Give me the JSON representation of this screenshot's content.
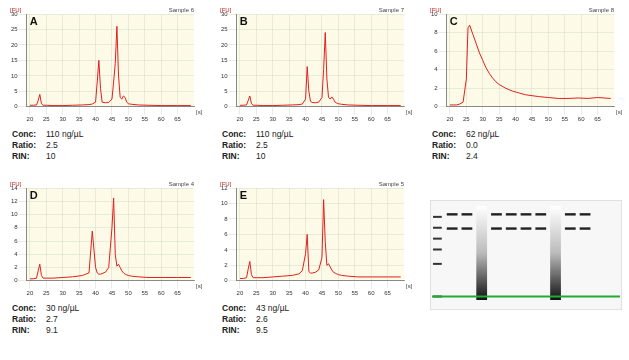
{
  "chart_data": [
    {
      "type": "line",
      "title": "A",
      "subtitle": "Sample 6",
      "ylabel": "[FU]",
      "xlabel": "[s]",
      "color": "#e0201c",
      "grid": true,
      "x": [
        20,
        21,
        22,
        22.5,
        23,
        23.5,
        24,
        25,
        27,
        30,
        33,
        36,
        38,
        39,
        40,
        40.5,
        41,
        41.5,
        42,
        43,
        44,
        45,
        45.5,
        46,
        46.5,
        47,
        47.5,
        48,
        48.5,
        49,
        49.5,
        50,
        51,
        53,
        56,
        60,
        65,
        69
      ],
      "values": [
        0.5,
        0.5,
        0.6,
        2,
        4,
        1,
        0.5,
        0.5,
        0.4,
        0.4,
        0.5,
        0.6,
        0.7,
        0.9,
        1.5,
        8,
        15,
        6,
        1.5,
        1.3,
        1.4,
        2.5,
        8,
        14,
        26,
        10,
        3,
        2.5,
        3.5,
        3,
        1.5,
        1,
        0.8,
        0.6,
        0.5,
        0.4,
        0.4,
        0.4
      ],
      "xlim": [
        19,
        70
      ],
      "xticks": [
        20,
        25,
        30,
        35,
        40,
        45,
        50,
        55,
        60,
        65
      ],
      "ylim": [
        0,
        30
      ],
      "yticks": [
        0,
        5,
        10,
        15,
        20,
        25,
        30
      ],
      "notes": [
        [
          "Conc:",
          "110 ng/µL"
        ],
        [
          "Ratio:",
          "2.5"
        ],
        [
          "RIN:",
          "10"
        ]
      ]
    },
    {
      "type": "line",
      "title": "B",
      "subtitle": "Sample 7",
      "ylabel": "[FU]",
      "xlabel": "[s]",
      "color": "#e0201c",
      "grid": true,
      "x": [
        20,
        21,
        22,
        22.5,
        23,
        23.5,
        24,
        25,
        27,
        30,
        33,
        36,
        38,
        39,
        40,
        40.5,
        41,
        41.5,
        42,
        43,
        44,
        45,
        45.5,
        46,
        46.5,
        47,
        47.5,
        48,
        48.5,
        49,
        49.5,
        50,
        51,
        53,
        56,
        60,
        65,
        69
      ],
      "values": [
        0.5,
        0.5,
        0.6,
        2,
        3.5,
        1,
        0.5,
        0.5,
        0.4,
        0.4,
        0.5,
        0.6,
        0.7,
        0.9,
        2.5,
        13,
        5,
        1.8,
        1.4,
        1.3,
        1.5,
        3,
        12,
        24,
        9,
        3,
        2.5,
        3.2,
        2.5,
        1.5,
        1.2,
        1,
        0.8,
        0.6,
        0.5,
        0.4,
        0.4,
        0.4
      ],
      "xlim": [
        19,
        70
      ],
      "xticks": [
        20,
        25,
        30,
        35,
        40,
        45,
        50,
        55,
        60,
        65
      ],
      "ylim": [
        0,
        30
      ],
      "yticks": [
        0,
        5,
        10,
        15,
        20,
        25,
        30
      ],
      "notes": [
        [
          "Conc:",
          "110 ng/µL"
        ],
        [
          "Ratio:",
          "2.5"
        ],
        [
          "RIN:",
          "10"
        ]
      ]
    },
    {
      "type": "line",
      "title": "C",
      "subtitle": "Sample 8",
      "ylabel": "[FU]",
      "xlabel": "[s]",
      "color": "#e0201c",
      "grid": true,
      "x": [
        20,
        21,
        22,
        23,
        24,
        25,
        25.5,
        26,
        27,
        28,
        29,
        30,
        31,
        32,
        33,
        34,
        35,
        37,
        39,
        41,
        43,
        45,
        47,
        50,
        53,
        56,
        59,
        62,
        65,
        69
      ],
      "values": [
        0.2,
        0.2,
        0.2,
        0.3,
        0.5,
        3,
        8.5,
        8.8,
        7.8,
        6.8,
        5.8,
        5,
        4.2,
        3.6,
        3.1,
        2.7,
        2.4,
        2,
        1.7,
        1.5,
        1.3,
        1.2,
        1.1,
        1,
        0.9,
        0.9,
        0.95,
        0.9,
        1,
        0.9
      ],
      "xlim": [
        19,
        70
      ],
      "xticks": [
        20,
        25,
        30,
        35,
        40,
        45,
        50,
        55,
        60,
        65
      ],
      "ylim": [
        0,
        10
      ],
      "yticks": [
        0,
        2,
        4,
        6,
        8,
        10
      ],
      "notes": [
        [
          "Conc:",
          "62 ng/µL"
        ],
        [
          "Ratio:",
          "0.0"
        ],
        [
          "RIN:",
          "2.4"
        ]
      ]
    },
    {
      "type": "line",
      "title": "D",
      "subtitle": "Sample 4",
      "ylabel": "[FU]",
      "xlabel": "[s]",
      "color": "#e0201c",
      "grid": true,
      "x": [
        20,
        21,
        22,
        22.5,
        23,
        23.5,
        24,
        25,
        27,
        30,
        33,
        36,
        38,
        39,
        40,
        40.5,
        41,
        41.5,
        42,
        43,
        44,
        45,
        45.5,
        46,
        46.5,
        47,
        47.5,
        48,
        48.5,
        49,
        49.5,
        50,
        51,
        53,
        56,
        60,
        65,
        69
      ],
      "values": [
        0.3,
        0.3,
        0.4,
        1.5,
        2.5,
        0.8,
        0.4,
        0.4,
        0.4,
        0.5,
        0.6,
        0.8,
        1.2,
        7.5,
        2,
        1.2,
        1,
        1,
        1.1,
        1.3,
        2,
        8,
        12.5,
        4,
        2.2,
        2.5,
        2,
        1.5,
        1.2,
        1,
        0.9,
        0.8,
        0.7,
        0.6,
        0.5,
        0.5,
        0.5,
        0.5
      ],
      "xlim": [
        19,
        70
      ],
      "xticks": [
        20,
        25,
        30,
        35,
        40,
        45,
        50,
        55,
        60,
        65
      ],
      "ylim": [
        0,
        14
      ],
      "yticks": [
        0,
        2,
        4,
        6,
        8,
        10,
        12,
        14
      ],
      "notes": [
        [
          "Conc:",
          "30 ng/µL"
        ],
        [
          "Ratio:",
          "2.7"
        ],
        [
          "RIN:",
          "9.1"
        ]
      ]
    },
    {
      "type": "line",
      "title": "E",
      "subtitle": "Sample 5",
      "ylabel": "[FU]",
      "xlabel": "[s]",
      "color": "#e0201c",
      "grid": true,
      "x": [
        20,
        21,
        22,
        22.5,
        23,
        23.5,
        24,
        25,
        27,
        30,
        33,
        36,
        38,
        39,
        40,
        40.5,
        41,
        41.5,
        42,
        43,
        44,
        45,
        45.5,
        46,
        46.5,
        47,
        47.5,
        48,
        48.5,
        49,
        49.5,
        50,
        51,
        53,
        56,
        60,
        65,
        69
      ],
      "values": [
        0.3,
        0.3,
        0.4,
        1.5,
        2.5,
        0.8,
        0.4,
        0.4,
        0.4,
        0.5,
        0.6,
        0.7,
        0.9,
        1.3,
        3.5,
        6,
        1.2,
        1,
        1,
        1.1,
        1.4,
        3,
        10.5,
        5,
        2,
        2.2,
        1.8,
        1.4,
        1.1,
        1,
        0.9,
        0.8,
        0.7,
        0.6,
        0.5,
        0.5,
        0.5,
        0.5
      ],
      "xlim": [
        19,
        70
      ],
      "xticks": [
        20,
        25,
        30,
        35,
        40,
        45,
        50,
        55,
        60,
        65
      ],
      "ylim": [
        0,
        12
      ],
      "yticks": [
        0,
        2,
        4,
        6,
        8,
        10,
        12
      ],
      "notes": [
        [
          "Conc:",
          "43 ng/µL"
        ],
        [
          "Ratio:",
          "2.6"
        ],
        [
          "RIN:",
          "9.5"
        ]
      ]
    }
  ],
  "gel": {
    "ylim": [
      20,
      8000
    ],
    "marker_nt": 25,
    "ladder": [
      25,
      200,
      500,
      1000,
      2000,
      4000
    ],
    "lanes": [
      {
        "bands": [
          1900,
          4700
        ],
        "smear": false
      },
      {
        "bands": [
          1900,
          4700
        ],
        "smear": false
      },
      {
        "bands": [],
        "smear": true
      },
      {
        "bands": [
          1900,
          4700
        ],
        "smear": false
      },
      {
        "bands": [
          1900,
          4700
        ],
        "smear": false
      },
      {
        "bands": [
          1900,
          4700
        ],
        "smear": false
      },
      {
        "bands": [
          1900,
          4700
        ],
        "smear": false
      },
      {
        "bands": [],
        "smear": true
      },
      {
        "bands": [
          1900,
          4700
        ],
        "smear": false
      },
      {
        "bands": [
          1900,
          4700
        ],
        "smear": false
      },
      {
        "bands": [],
        "smear": false
      },
      {
        "bands": [],
        "smear": false
      }
    ]
  }
}
